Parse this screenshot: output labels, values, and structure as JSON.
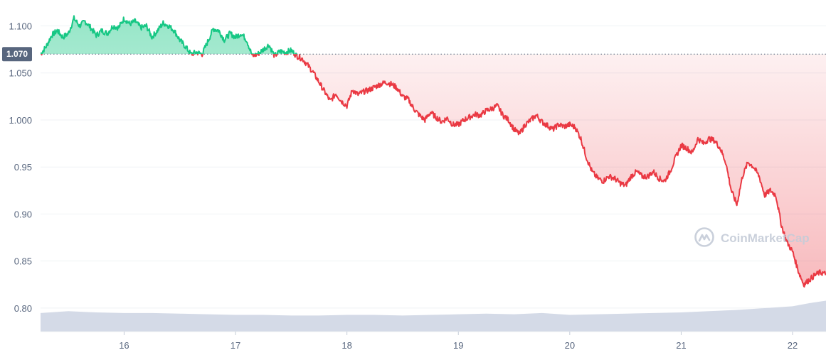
{
  "watermark": {
    "text": "CoinMarketCap",
    "icon": "coinmarketcap-logo-icon"
  },
  "colors": {
    "up": "#16c784",
    "down": "#ea3943",
    "volume": "#cfd6e4",
    "grid": "#eff2f5",
    "reference": "#58667e",
    "axis_text": "#58667e"
  },
  "chart_data": {
    "type": "line",
    "title": "",
    "xlabel": "",
    "ylabel": "",
    "ylim": [
      0.775,
      1.12
    ],
    "xlim": [
      15.25,
      22.3
    ],
    "y_ticks": [
      0.8,
      0.85,
      0.9,
      0.95,
      1.0,
      1.05,
      1.1
    ],
    "y_tick_labels": [
      "0.80",
      "0.85",
      "0.90",
      "0.95",
      "1.000",
      "1.050",
      "1.100"
    ],
    "x_ticks": [
      16,
      17,
      18,
      19,
      20,
      21,
      22
    ],
    "x_tick_labels": [
      "16",
      "17",
      "18",
      "19",
      "20",
      "21",
      "22"
    ],
    "reference_line": {
      "value": 1.07,
      "label": "1.070"
    },
    "grid": true,
    "legend": "none",
    "series": [
      {
        "kind": "price",
        "x": [
          15.25,
          15.3,
          15.35,
          15.4,
          15.45,
          15.5,
          15.55,
          15.6,
          15.65,
          15.7,
          15.75,
          15.8,
          15.85,
          15.9,
          15.95,
          16.0,
          16.05,
          16.1,
          16.15,
          16.2,
          16.25,
          16.3,
          16.35,
          16.4,
          16.45,
          16.5,
          16.55,
          16.6,
          16.65,
          16.7,
          16.75,
          16.8,
          16.85,
          16.9,
          16.95,
          17.0,
          17.05,
          17.1,
          17.15,
          17.2,
          17.25,
          17.3,
          17.35,
          17.4,
          17.45,
          17.5,
          17.55,
          17.6,
          17.65,
          17.7,
          17.75,
          17.8,
          17.85,
          17.9,
          17.95,
          18.0,
          18.05,
          18.1,
          18.15,
          18.2,
          18.25,
          18.3,
          18.35,
          18.4,
          18.45,
          18.5,
          18.55,
          18.6,
          18.65,
          18.7,
          18.75,
          18.8,
          18.85,
          18.9,
          18.95,
          19.0,
          19.05,
          19.1,
          19.15,
          19.2,
          19.25,
          19.3,
          19.35,
          19.4,
          19.45,
          19.5,
          19.55,
          19.6,
          19.65,
          19.7,
          19.75,
          19.8,
          19.85,
          19.9,
          19.95,
          20.0,
          20.05,
          20.1,
          20.15,
          20.2,
          20.25,
          20.3,
          20.35,
          20.4,
          20.45,
          20.5,
          20.55,
          20.6,
          20.65,
          20.7,
          20.75,
          20.8,
          20.85,
          20.9,
          20.95,
          21.0,
          21.05,
          21.1,
          21.15,
          21.2,
          21.25,
          21.3,
          21.35,
          21.4,
          21.45,
          21.5,
          21.55,
          21.6,
          21.65,
          21.7,
          21.75,
          21.8,
          21.85,
          21.9,
          21.95,
          22.0,
          22.05,
          22.1,
          22.15,
          22.2,
          22.25,
          22.3
        ],
        "y": [
          1.07,
          1.078,
          1.09,
          1.095,
          1.088,
          1.092,
          1.108,
          1.1,
          1.105,
          1.098,
          1.09,
          1.095,
          1.092,
          1.1,
          1.098,
          1.108,
          1.102,
          1.105,
          1.098,
          1.1,
          1.088,
          1.095,
          1.103,
          1.1,
          1.095,
          1.085,
          1.078,
          1.07,
          1.072,
          1.07,
          1.083,
          1.097,
          1.095,
          1.085,
          1.092,
          1.088,
          1.092,
          1.085,
          1.068,
          1.07,
          1.075,
          1.08,
          1.068,
          1.073,
          1.072,
          1.074,
          1.068,
          1.065,
          1.058,
          1.05,
          1.04,
          1.03,
          1.02,
          1.028,
          1.02,
          1.015,
          1.032,
          1.027,
          1.03,
          1.032,
          1.035,
          1.038,
          1.04,
          1.038,
          1.034,
          1.025,
          1.022,
          1.012,
          1.005,
          1.0,
          1.008,
          1.003,
          0.998,
          1.002,
          0.995,
          0.995,
          1.0,
          1.003,
          1.006,
          1.005,
          1.01,
          1.012,
          1.015,
          1.005,
          1.0,
          0.99,
          0.985,
          0.995,
          1.0,
          1.005,
          0.998,
          0.994,
          0.99,
          0.995,
          0.993,
          0.995,
          0.992,
          0.98,
          0.96,
          0.945,
          0.938,
          0.935,
          0.94,
          0.938,
          0.933,
          0.93,
          0.94,
          0.945,
          0.94,
          0.94,
          0.945,
          0.938,
          0.935,
          0.945,
          0.96,
          0.973,
          0.97,
          0.965,
          0.98,
          0.975,
          0.98,
          0.978,
          0.97,
          0.955,
          0.925,
          0.91,
          0.94,
          0.955,
          0.95,
          0.94,
          0.92,
          0.925,
          0.92,
          0.888,
          0.87,
          0.86,
          0.84,
          0.825,
          0.83,
          0.835,
          0.838,
          0.836
        ]
      },
      {
        "kind": "volume",
        "x": [
          15.25,
          15.5,
          15.75,
          16.0,
          16.25,
          16.5,
          16.75,
          17.0,
          17.25,
          17.5,
          17.75,
          18.0,
          18.25,
          18.5,
          18.75,
          19.0,
          19.25,
          19.5,
          19.75,
          20.0,
          20.25,
          20.5,
          20.75,
          21.0,
          21.25,
          21.5,
          21.75,
          22.0,
          22.15,
          22.3
        ],
        "y": [
          0.3,
          0.33,
          0.31,
          0.3,
          0.3,
          0.29,
          0.28,
          0.27,
          0.27,
          0.26,
          0.26,
          0.27,
          0.27,
          0.26,
          0.27,
          0.28,
          0.29,
          0.28,
          0.3,
          0.27,
          0.28,
          0.29,
          0.3,
          0.31,
          0.33,
          0.35,
          0.38,
          0.41,
          0.46,
          0.5
        ]
      }
    ]
  }
}
